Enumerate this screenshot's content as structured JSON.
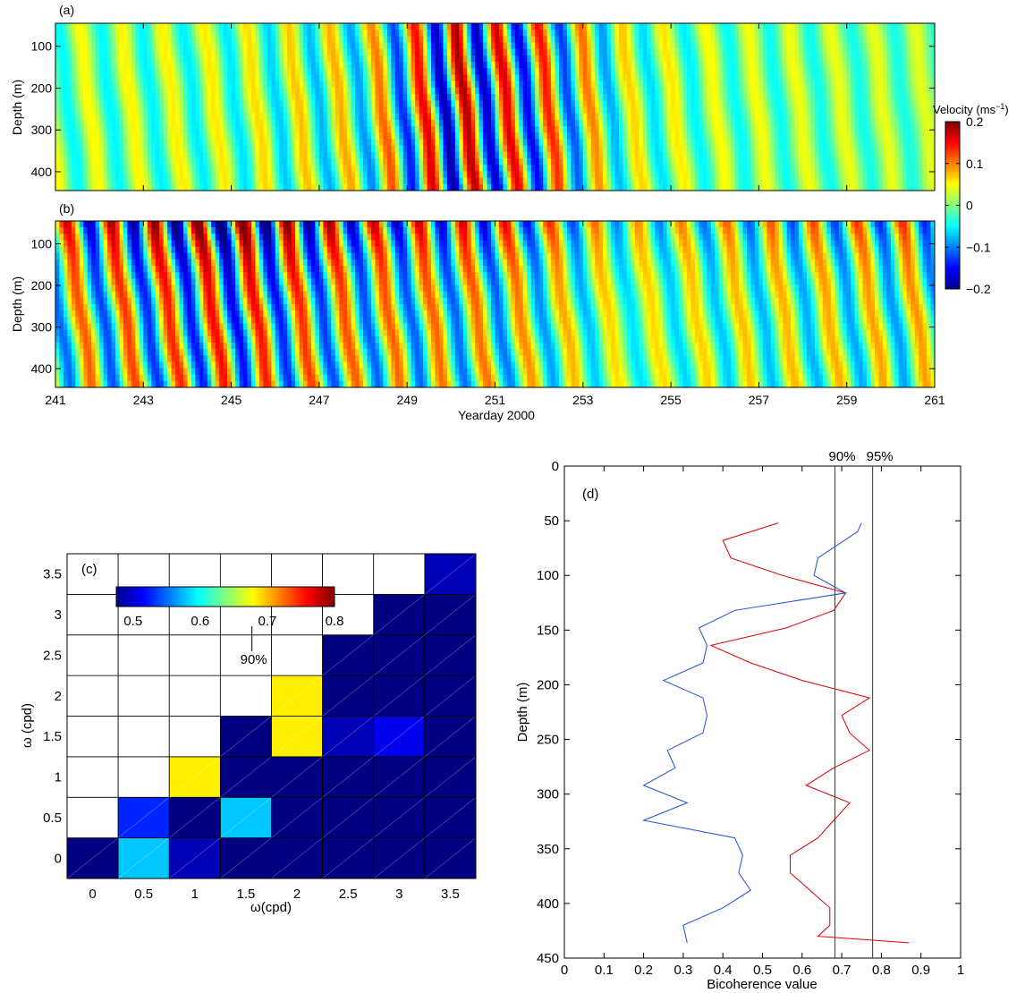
{
  "chart_data": [
    {
      "panel": "(a)",
      "type": "heatmap",
      "ylabel": "Depth (m)",
      "y_ticks": [
        "100",
        "200",
        "300",
        "400"
      ],
      "y_tick_values": [
        100,
        200,
        300,
        400
      ],
      "ylim": [
        445,
        45
      ],
      "xlim": [
        241,
        261
      ],
      "x_ticks": [],
      "field": "downward-propagating banded velocity (near-inertial)",
      "features": {
        "band_period_days": 0.95,
        "phase_tilt_days_per_100m": -0.12,
        "amplitude_envelope": [
          {
            "x": 241,
            "v": 0.05
          },
          {
            "x": 245,
            "v": 0.06
          },
          {
            "x": 248,
            "v": 0.09
          },
          {
            "x": 250,
            "v": 0.19
          },
          {
            "x": 252,
            "v": 0.15
          },
          {
            "x": 254,
            "v": 0.07
          },
          {
            "x": 256,
            "v": 0.05
          },
          {
            "x": 261,
            "v": 0.04
          }
        ]
      }
    },
    {
      "panel": "(b)",
      "type": "heatmap",
      "ylabel": "Depth (m)",
      "xlabel": "Yearday 2000",
      "y_ticks": [
        "100",
        "200",
        "300",
        "400"
      ],
      "y_tick_values": [
        100,
        200,
        300,
        400
      ],
      "ylim": [
        445,
        45
      ],
      "xlim": [
        241,
        261
      ],
      "x_ticks": [
        "241",
        "243",
        "245",
        "247",
        "249",
        "251",
        "253",
        "255",
        "257",
        "259",
        "261"
      ],
      "x_tick_values": [
        241,
        243,
        245,
        247,
        249,
        251,
        253,
        255,
        257,
        259,
        261
      ],
      "field": "upper-layer enhanced velocity bands",
      "features": {
        "band_period_days": 1.0,
        "phase_tilt_days_per_100m": -0.15,
        "amplitude_envelope": [
          {
            "x": 241,
            "v": 0.14
          },
          {
            "x": 245,
            "v": 0.2
          },
          {
            "x": 248,
            "v": 0.15
          },
          {
            "x": 251,
            "v": 0.14
          },
          {
            "x": 254,
            "v": 0.08
          },
          {
            "x": 257,
            "v": 0.1
          },
          {
            "x": 261,
            "v": 0.12
          }
        ]
      },
      "colorbar": {
        "label": "Velocity (ms",
        "label_exponent": "−1",
        "label_close": ")",
        "tick_labels": [
          "0.2",
          "0.1",
          "0",
          "−0.1",
          "−0.2"
        ],
        "tick_values": [
          0.2,
          0.1,
          0,
          -0.1,
          -0.2
        ],
        "range": [
          -0.2,
          0.2
        ]
      }
    },
    {
      "panel": "(c)",
      "type": "heatmap",
      "xlabel": "ω(cpd)",
      "ylabel": "ω (cpd)",
      "categories_x": [
        "0",
        "0.5",
        "1",
        "1.5",
        "2",
        "2.5",
        "3",
        "3.5"
      ],
      "categories_y": [
        "0",
        "0.5",
        "1",
        "1.5",
        "2",
        "2.5",
        "3",
        "3.5"
      ],
      "rows": [
        [
          0.5,
          0.62,
          0.52,
          0.5,
          0.5,
          0.5,
          0.5,
          0.5
        ],
        [
          null,
          0.56,
          0.5,
          0.62,
          0.5,
          0.5,
          0.5,
          0.5
        ],
        [
          null,
          null,
          0.74,
          0.5,
          0.5,
          0.5,
          0.5,
          0.5
        ],
        [
          null,
          null,
          null,
          0.5,
          0.74,
          0.52,
          0.54,
          0.5
        ],
        [
          null,
          null,
          null,
          null,
          0.74,
          0.5,
          0.5,
          0.5
        ],
        [
          null,
          null,
          null,
          null,
          null,
          0.5,
          0.5,
          0.5
        ],
        [
          null,
          null,
          null,
          null,
          null,
          null,
          0.5,
          0.5
        ],
        [
          null,
          null,
          null,
          null,
          null,
          null,
          null,
          0.52
        ]
      ],
      "colorbar": {
        "tick_labels": [
          "0.5",
          "0.6",
          "0.7",
          "0.8"
        ],
        "tick_values": [
          0.5,
          0.6,
          0.7,
          0.8
        ],
        "range": [
          0.5,
          0.8
        ],
        "marker_label": "90%",
        "marker_value": 0.677
      }
    },
    {
      "panel": "(d)",
      "type": "line",
      "xlabel": "Bicoherence value",
      "ylabel": "Depth (m)",
      "xlim": [
        0,
        1
      ],
      "ylim": [
        450,
        0
      ],
      "x_ticks": [
        "0",
        "0.1",
        "0.2",
        "0.3",
        "0.4",
        "0.5",
        "0.6",
        "0.7",
        "0.8",
        "0.9",
        "1"
      ],
      "x_tick_values": [
        0,
        0.1,
        0.2,
        0.3,
        0.4,
        0.5,
        0.6,
        0.7,
        0.8,
        0.9,
        1
      ],
      "y_ticks": [
        "0",
        "50",
        "100",
        "150",
        "200",
        "250",
        "300",
        "350",
        "400",
        "450"
      ],
      "y_tick_values": [
        0,
        50,
        100,
        150,
        200,
        250,
        300,
        350,
        400,
        450
      ],
      "reference_lines": [
        {
          "label": "90%",
          "x": 0.683
        },
        {
          "label": "95%",
          "x": 0.778
        }
      ],
      "series": [
        {
          "color": "#e00000",
          "points": [
            {
              "x": 0.54,
              "y": 52
            },
            {
              "x": 0.4,
              "y": 68
            },
            {
              "x": 0.42,
              "y": 84
            },
            {
              "x": 0.55,
              "y": 100
            },
            {
              "x": 0.71,
              "y": 116
            },
            {
              "x": 0.68,
              "y": 132
            },
            {
              "x": 0.56,
              "y": 148
            },
            {
              "x": 0.37,
              "y": 164
            },
            {
              "x": 0.47,
              "y": 180
            },
            {
              "x": 0.6,
              "y": 196
            },
            {
              "x": 0.77,
              "y": 212
            },
            {
              "x": 0.7,
              "y": 228
            },
            {
              "x": 0.72,
              "y": 244
            },
            {
              "x": 0.77,
              "y": 260
            },
            {
              "x": 0.68,
              "y": 276
            },
            {
              "x": 0.61,
              "y": 292
            },
            {
              "x": 0.72,
              "y": 308
            },
            {
              "x": 0.68,
              "y": 324
            },
            {
              "x": 0.64,
              "y": 340
            },
            {
              "x": 0.57,
              "y": 356
            },
            {
              "x": 0.57,
              "y": 372
            },
            {
              "x": 0.62,
              "y": 388
            },
            {
              "x": 0.67,
              "y": 404
            },
            {
              "x": 0.67,
              "y": 420
            },
            {
              "x": 0.64,
              "y": 430
            },
            {
              "x": 0.87,
              "y": 436
            }
          ]
        },
        {
          "color": "#1f4fd8",
          "points": [
            {
              "x": 0.75,
              "y": 52
            },
            {
              "x": 0.74,
              "y": 60
            },
            {
              "x": 0.64,
              "y": 84
            },
            {
              "x": 0.63,
              "y": 100
            },
            {
              "x": 0.71,
              "y": 116
            },
            {
              "x": 0.43,
              "y": 132
            },
            {
              "x": 0.34,
              "y": 148
            },
            {
              "x": 0.36,
              "y": 164
            },
            {
              "x": 0.35,
              "y": 180
            },
            {
              "x": 0.25,
              "y": 196
            },
            {
              "x": 0.35,
              "y": 212
            },
            {
              "x": 0.36,
              "y": 228
            },
            {
              "x": 0.35,
              "y": 244
            },
            {
              "x": 0.26,
              "y": 260
            },
            {
              "x": 0.28,
              "y": 276
            },
            {
              "x": 0.2,
              "y": 292
            },
            {
              "x": 0.31,
              "y": 308
            },
            {
              "x": 0.2,
              "y": 324
            },
            {
              "x": 0.43,
              "y": 340
            },
            {
              "x": 0.45,
              "y": 356
            },
            {
              "x": 0.44,
              "y": 372
            },
            {
              "x": 0.47,
              "y": 388
            },
            {
              "x": 0.4,
              "y": 404
            },
            {
              "x": 0.3,
              "y": 420
            },
            {
              "x": 0.31,
              "y": 436
            }
          ]
        }
      ]
    }
  ]
}
